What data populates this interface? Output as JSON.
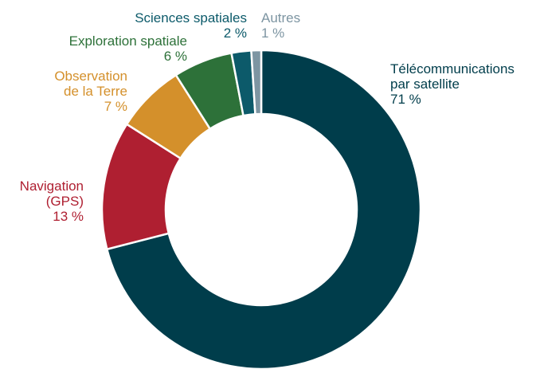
{
  "chart_data": {
    "type": "donut",
    "categories": [
      "Télécommunications\npar satellite",
      "Navigation\n(GPS)",
      "Observation\nde la Terre",
      "Exploration spatiale",
      "Sciences spatiales",
      "Autres"
    ],
    "values": [
      71,
      13,
      7,
      6,
      2,
      1
    ],
    "value_labels": [
      "71 %",
      "13 %",
      "7 %",
      "6 %",
      "2 %",
      "1 %"
    ],
    "colors": [
      "#003d4b",
      "#af1f31",
      "#d4902b",
      "#2d7139",
      "#0c5a6a",
      "#7d95a2"
    ]
  }
}
